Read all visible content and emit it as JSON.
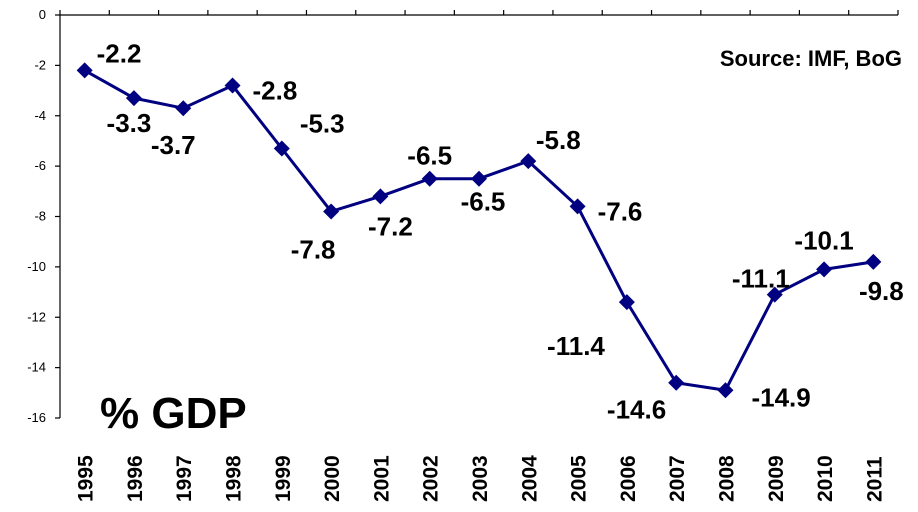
{
  "chart_data": {
    "type": "line",
    "source": "Source: IMF, BoG",
    "unit_label": "% GDP",
    "categories": [
      "1995",
      "1996",
      "1997",
      "1998",
      "1999",
      "2000",
      "2001",
      "2002",
      "2003",
      "2004",
      "2005",
      "2006",
      "2007",
      "2008",
      "2009",
      "2010",
      "2011"
    ],
    "values": [
      -2.2,
      -3.3,
      -3.7,
      -2.8,
      -5.3,
      -7.8,
      -7.2,
      -6.5,
      -6.5,
      -5.8,
      -7.6,
      -11.4,
      -14.6,
      -14.9,
      -11.1,
      -10.1,
      -9.8
    ],
    "data_labels": [
      "-2.2",
      "-3.3",
      "-3.7",
      "-2.8",
      "-5.3",
      "-7.8",
      "-7.2",
      "-6.5",
      "-6.5",
      "-5.8",
      "-7.6",
      "-11.4",
      "-14.6",
      "-14.9",
      "-11.1",
      "-10.1",
      "-9.8"
    ],
    "ylim": [
      -16,
      0
    ],
    "yticks": [
      "0",
      "-2",
      "-4",
      "-6",
      "-8",
      "-10",
      "-12",
      "-14",
      "-16"
    ],
    "grid": false,
    "series_color": "#000080",
    "axis_color": "#000000"
  }
}
